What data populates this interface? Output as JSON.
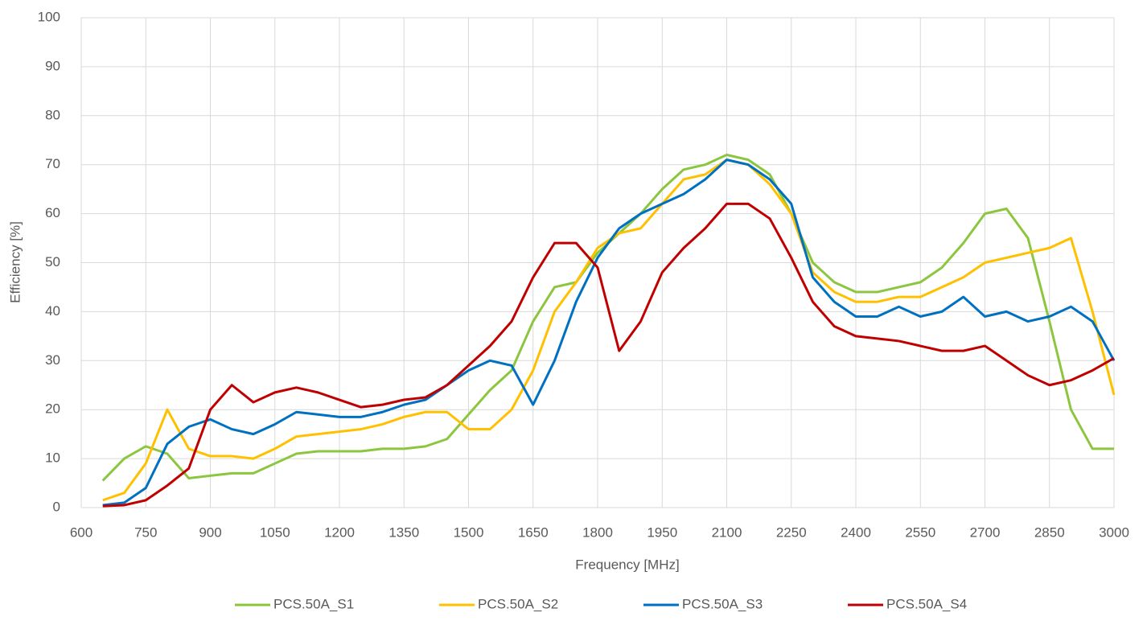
{
  "chart_data": {
    "type": "line",
    "x_label": "Frequency [MHz]",
    "y_label": "Efficiency [%]",
    "x": [
      650,
      700,
      750,
      800,
      850,
      900,
      950,
      1000,
      1050,
      1100,
      1150,
      1200,
      1250,
      1300,
      1350,
      1400,
      1450,
      1500,
      1550,
      1600,
      1650,
      1700,
      1750,
      1800,
      1850,
      1900,
      1950,
      2000,
      2050,
      2100,
      2150,
      2200,
      2250,
      2300,
      2350,
      2400,
      2450,
      2500,
      2550,
      2600,
      2650,
      2700,
      2750,
      2800,
      2850,
      2900,
      2950,
      3000
    ],
    "series": [
      {
        "name": "PCS.50A_S1",
        "color": "#8cc63f",
        "values": [
          5.5,
          10,
          12.5,
          11,
          6,
          6.5,
          7,
          7,
          9,
          11,
          11.5,
          11.5,
          11.5,
          12,
          12,
          12.5,
          14,
          19,
          24,
          28,
          38,
          45,
          46,
          52,
          56,
          60,
          65,
          69,
          70,
          72,
          71,
          68,
          60,
          50,
          46,
          44,
          44,
          45,
          46,
          49,
          54,
          60,
          61,
          55,
          38,
          20,
          12,
          12
        ]
      },
      {
        "name": "PCS.50A_S2",
        "color": "#ffc000",
        "values": [
          1.5,
          3,
          9,
          20,
          12,
          10.5,
          10.5,
          10,
          12,
          14.5,
          15,
          15.5,
          16,
          17,
          18.5,
          19.5,
          19.5,
          16,
          16,
          20,
          28,
          40,
          46,
          53,
          56,
          57,
          62,
          67,
          68,
          71,
          70,
          66,
          60,
          48,
          44,
          42,
          42,
          43,
          43,
          45,
          47,
          50,
          51,
          52,
          53,
          55,
          40,
          23
        ]
      },
      {
        "name": "PCS.50A_S3",
        "color": "#0070c0",
        "values": [
          0.5,
          1,
          4,
          13,
          16.5,
          18,
          16,
          15,
          17,
          19.5,
          19,
          18.5,
          18.5,
          19.5,
          21,
          22,
          25,
          28,
          30,
          29,
          21,
          30,
          42,
          51,
          57,
          60,
          62,
          64,
          67,
          71,
          70,
          67,
          62,
          47,
          42,
          39,
          39,
          41,
          39,
          40,
          43,
          39,
          40,
          38,
          39,
          41,
          38,
          30
        ]
      },
      {
        "name": "PCS.50A_S4",
        "color": "#c00000",
        "values": [
          0.3,
          0.5,
          1.5,
          4.5,
          8,
          20,
          25,
          21.5,
          23.5,
          24.5,
          23.5,
          22,
          20.5,
          21,
          22,
          22.5,
          25,
          29,
          33,
          38,
          47,
          54,
          54,
          49,
          32,
          38,
          48,
          53,
          57,
          62,
          62,
          59,
          51,
          42,
          37,
          35,
          34.5,
          34,
          33,
          32,
          32,
          33,
          30,
          27,
          25,
          26,
          28,
          30.5
        ]
      }
    ],
    "xlim": [
      600,
      3000
    ],
    "xticks": [
      600,
      750,
      900,
      1050,
      1200,
      1350,
      1500,
      1650,
      1800,
      1950,
      2100,
      2250,
      2400,
      2550,
      2700,
      2850,
      3000
    ],
    "ylim": [
      0,
      100
    ],
    "yticks": [
      0,
      10,
      20,
      30,
      40,
      50,
      60,
      70,
      80,
      90,
      100
    ],
    "grid": true,
    "legend": "bottom"
  }
}
